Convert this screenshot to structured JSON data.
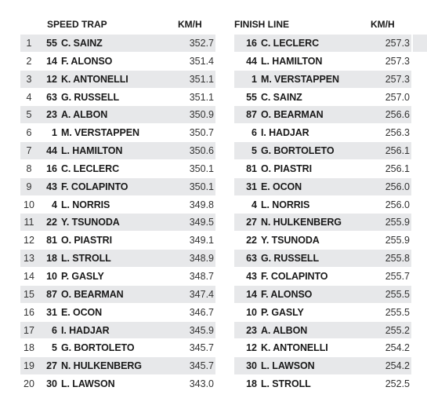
{
  "speed_trap": {
    "title": "SPEED TRAP",
    "unit": "KM/H",
    "rows": [
      {
        "pos": "1",
        "num": "55",
        "driver": "C. SAINZ",
        "speed": "352.7"
      },
      {
        "pos": "2",
        "num": "14",
        "driver": "F. ALONSO",
        "speed": "351.4"
      },
      {
        "pos": "3",
        "num": "12",
        "driver": "K. ANTONELLI",
        "speed": "351.1"
      },
      {
        "pos": "4",
        "num": "63",
        "driver": "G. RUSSELL",
        "speed": "351.1"
      },
      {
        "pos": "5",
        "num": "23",
        "driver": "A. ALBON",
        "speed": "350.9"
      },
      {
        "pos": "6",
        "num": "1",
        "driver": "M. VERSTAPPEN",
        "speed": "350.7"
      },
      {
        "pos": "7",
        "num": "44",
        "driver": "L. HAMILTON",
        "speed": "350.6"
      },
      {
        "pos": "8",
        "num": "16",
        "driver": "C. LECLERC",
        "speed": "350.1"
      },
      {
        "pos": "9",
        "num": "43",
        "driver": "F. COLAPINTO",
        "speed": "350.1"
      },
      {
        "pos": "10",
        "num": "4",
        "driver": "L. NORRIS",
        "speed": "349.8"
      },
      {
        "pos": "11",
        "num": "22",
        "driver": "Y. TSUNODA",
        "speed": "349.5"
      },
      {
        "pos": "12",
        "num": "81",
        "driver": "O. PIASTRI",
        "speed": "349.1"
      },
      {
        "pos": "13",
        "num": "18",
        "driver": "L. STROLL",
        "speed": "348.9"
      },
      {
        "pos": "14",
        "num": "10",
        "driver": "P. GASLY",
        "speed": "348.7"
      },
      {
        "pos": "15",
        "num": "87",
        "driver": "O. BEARMAN",
        "speed": "347.4"
      },
      {
        "pos": "16",
        "num": "31",
        "driver": "E. OCON",
        "speed": "346.7"
      },
      {
        "pos": "17",
        "num": "6",
        "driver": "I. HADJAR",
        "speed": "345.9"
      },
      {
        "pos": "18",
        "num": "5",
        "driver": "G. BORTOLETO",
        "speed": "345.7"
      },
      {
        "pos": "19",
        "num": "27",
        "driver": "N. HULKENBERG",
        "speed": "345.7"
      },
      {
        "pos": "20",
        "num": "30",
        "driver": "L. LAWSON",
        "speed": "343.0"
      }
    ]
  },
  "finish_line": {
    "title": "FINISH LINE",
    "unit": "KM/H",
    "rows": [
      {
        "num": "16",
        "driver": "C. LECLERC",
        "speed": "257.3"
      },
      {
        "num": "44",
        "driver": "L. HAMILTON",
        "speed": "257.3"
      },
      {
        "num": "1",
        "driver": "M. VERSTAPPEN",
        "speed": "257.3"
      },
      {
        "num": "55",
        "driver": "C. SAINZ",
        "speed": "257.0"
      },
      {
        "num": "87",
        "driver": "O. BEARMAN",
        "speed": "256.6"
      },
      {
        "num": "6",
        "driver": "I. HADJAR",
        "speed": "256.3"
      },
      {
        "num": "5",
        "driver": "G. BORTOLETO",
        "speed": "256.1"
      },
      {
        "num": "81",
        "driver": "O. PIASTRI",
        "speed": "256.1"
      },
      {
        "num": "31",
        "driver": "E. OCON",
        "speed": "256.0"
      },
      {
        "num": "4",
        "driver": "L. NORRIS",
        "speed": "256.0"
      },
      {
        "num": "27",
        "driver": "N. HULKENBERG",
        "speed": "255.9"
      },
      {
        "num": "22",
        "driver": "Y. TSUNODA",
        "speed": "255.9"
      },
      {
        "num": "63",
        "driver": "G. RUSSELL",
        "speed": "255.8"
      },
      {
        "num": "43",
        "driver": "F. COLAPINTO",
        "speed": "255.7"
      },
      {
        "num": "14",
        "driver": "F. ALONSO",
        "speed": "255.5"
      },
      {
        "num": "10",
        "driver": "P. GASLY",
        "speed": "255.5"
      },
      {
        "num": "23",
        "driver": "A. ALBON",
        "speed": "255.2"
      },
      {
        "num": "12",
        "driver": "K. ANTONELLI",
        "speed": "254.2"
      },
      {
        "num": "30",
        "driver": "L. LAWSON",
        "speed": "254.2"
      },
      {
        "num": "18",
        "driver": "L. STROLL",
        "speed": "252.5"
      }
    ]
  }
}
